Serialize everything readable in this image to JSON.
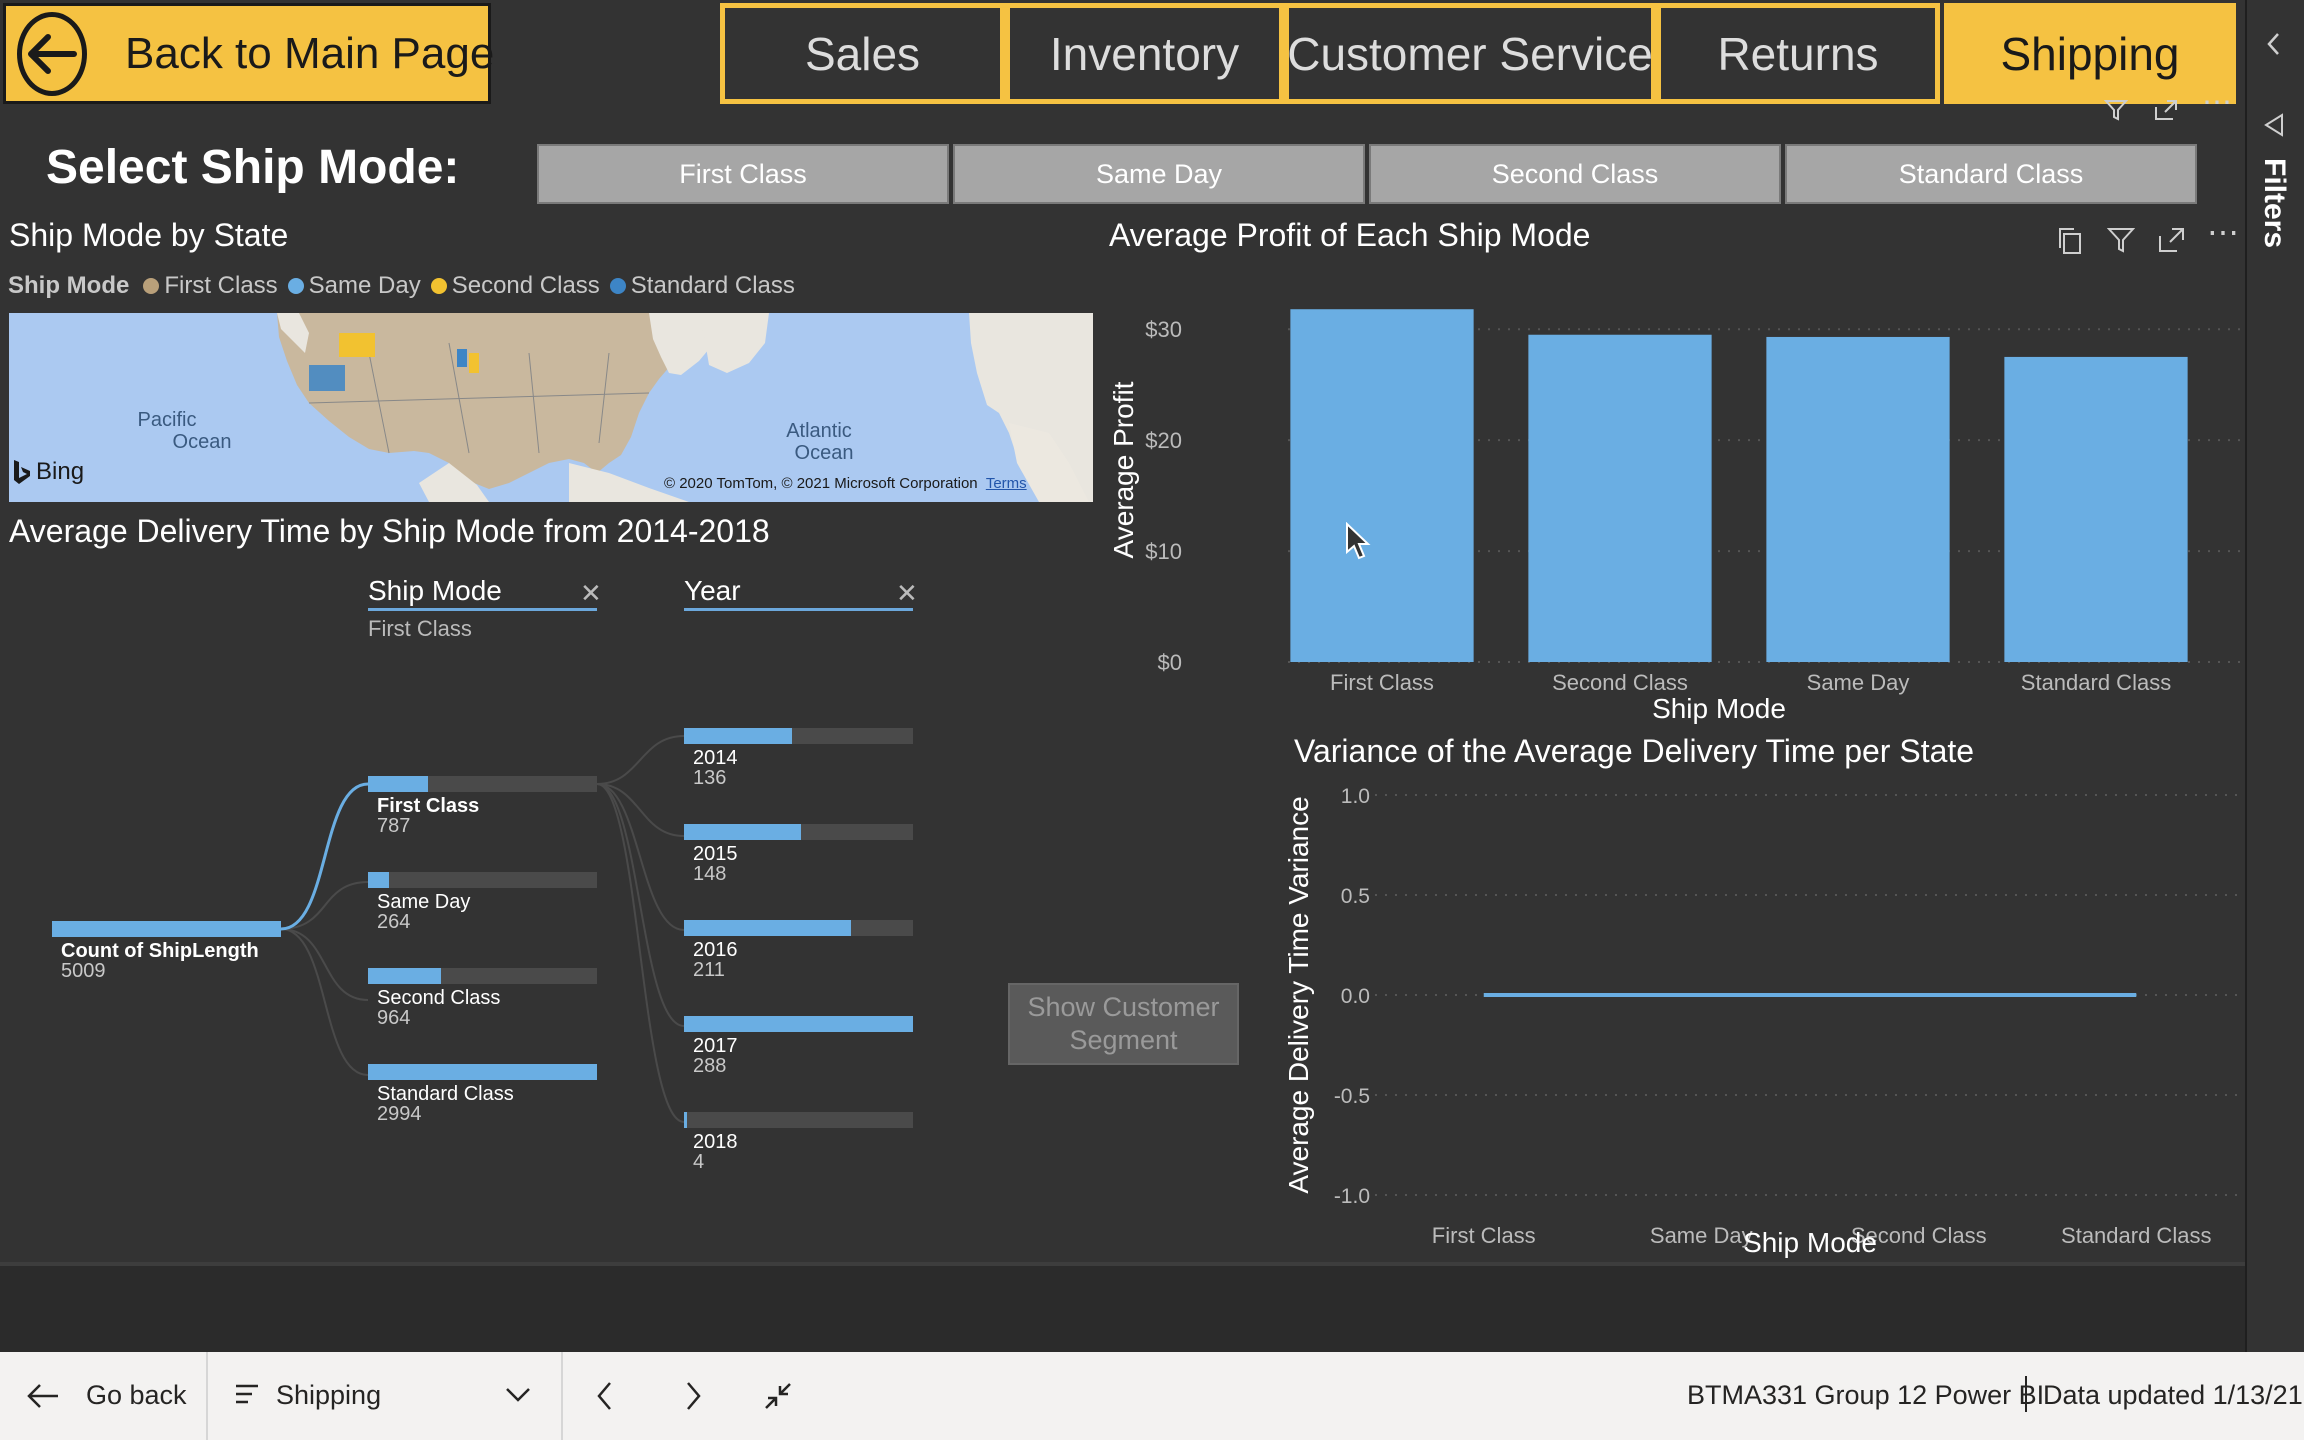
{
  "nav": {
    "back_label": "Back to Main Page",
    "tabs": [
      {
        "label": "Sales",
        "active": false
      },
      {
        "label": "Inventory",
        "active": false
      },
      {
        "label": "Customer Service",
        "active": false
      },
      {
        "label": "Returns",
        "active": false
      },
      {
        "label": "Shipping",
        "active": true
      }
    ]
  },
  "ship_mode_slicer": {
    "label": "Select Ship Mode:",
    "options": [
      "First Class",
      "Same Day",
      "Second Class",
      "Standard Class"
    ]
  },
  "map_visual": {
    "title": "Ship Mode by State",
    "legend_title": "Ship Mode",
    "legend": [
      {
        "label": "First Class",
        "color": "#b9a07a"
      },
      {
        "label": "Same Day",
        "color": "#6aaee3"
      },
      {
        "label": "Second Class",
        "color": "#f2c230"
      },
      {
        "label": "Standard Class",
        "color": "#3d85c6"
      }
    ],
    "labels": {
      "pacific": "Pacific Ocean",
      "atlantic": "Atlantic Ocean",
      "bing": "Bing",
      "copyright": "© 2020 TomTom, © 2021 Microsoft Corporation",
      "terms": "Terms"
    }
  },
  "decomp_tree": {
    "title": "Average Delivery Time by Ship Mode from 2014-2018",
    "level1_header": "Ship Mode",
    "level1_sub": "First Class",
    "level2_header": "Year",
    "root": {
      "label": "Count of ShipLength",
      "value": "5009"
    },
    "ship_modes": [
      {
        "label": "First Class",
        "value": "787",
        "fraction": 0.26
      },
      {
        "label": "Same Day",
        "value": "264",
        "fraction": 0.09
      },
      {
        "label": "Second Class",
        "value": "964",
        "fraction": 0.32
      },
      {
        "label": "Standard Class",
        "value": "2994",
        "fraction": 1.0
      }
    ],
    "years": [
      {
        "label": "2014",
        "value": "136",
        "fraction": 0.47
      },
      {
        "label": "2015",
        "value": "148",
        "fraction": 0.51
      },
      {
        "label": "2016",
        "value": "211",
        "fraction": 0.73
      },
      {
        "label": "2017",
        "value": "288",
        "fraction": 1.0
      },
      {
        "label": "2018",
        "value": "4",
        "fraction": 0.014
      }
    ]
  },
  "show_segment_button": "Show Customer Segment",
  "profit_chart": {
    "title": "Average Profit of Each Ship Mode",
    "xlabel": "Ship Mode",
    "ylabel": "Average Profit",
    "ytick_labels": [
      "$0",
      "$10",
      "$20",
      "$30"
    ]
  },
  "variance_chart": {
    "title": "Variance of the Average Delivery Time per State",
    "xlabel": "Ship Mode",
    "ylabel": "Average Delivery Time Variance",
    "ytick_labels": [
      "1.0",
      "0.5",
      "0.0",
      "-0.5",
      "-1.0"
    ]
  },
  "chart_data": [
    {
      "type": "bar",
      "title": "Average Profit of Each Ship Mode",
      "xlabel": "Ship Mode",
      "ylabel": "Average Profit",
      "categories": [
        "First Class",
        "Second Class",
        "Same Day",
        "Standard Class"
      ],
      "values": [
        31.8,
        29.5,
        29.3,
        27.5
      ],
      "ylim": [
        0,
        32
      ],
      "yticks": [
        0,
        10,
        20,
        30
      ],
      "color": "#6aaee3",
      "grid": true
    },
    {
      "type": "line",
      "title": "Variance of the Average Delivery Time per State",
      "xlabel": "Ship Mode",
      "ylabel": "Average Delivery Time Variance",
      "categories": [
        "First Class",
        "Same Day",
        "Second Class",
        "Standard Class"
      ],
      "values": [
        0,
        0,
        0,
        0
      ],
      "ylim": [
        -1.0,
        1.0
      ],
      "yticks": [
        1.0,
        0.5,
        0.0,
        -0.5,
        -1.0
      ],
      "color": "#6aaee3",
      "grid": true
    }
  ],
  "filters_pane_label": "Filters",
  "footer": {
    "go_back": "Go back",
    "page_name": "Shipping",
    "report_name": "BTMA331 Group 12 Power BI",
    "data_updated": "Data updated 1/13/21"
  }
}
